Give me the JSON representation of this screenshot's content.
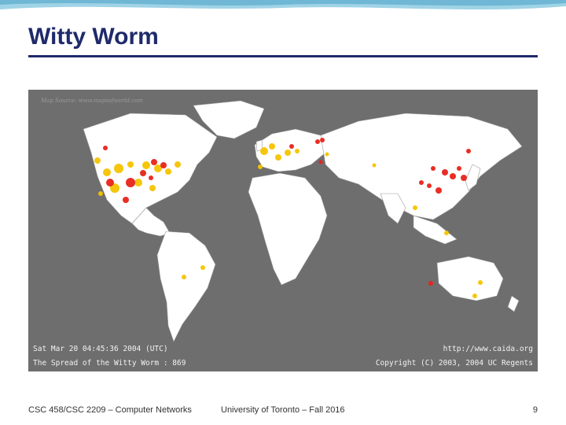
{
  "slide": {
    "title": "Witty Worm",
    "footer_left": "CSC 458/CSC 2209 – Computer Networks",
    "footer_center": "University of Toronto – Fall 2016",
    "page_number": "9"
  },
  "map": {
    "source_credit": "Map Source: www.mapsofworld.com",
    "timestamp": "Sat Mar 20 04:45:36 2004 (UTC)",
    "caption": "The Spread of the Witty Worm : 869",
    "url": "http://www.caida.org",
    "copyright": "Copyright (C) 2003, 2004 UC Regents",
    "colors": {
      "ocean": "#6e6e6e",
      "land": "#ffffff",
      "infected_high": "#e8231a",
      "infected_low": "#f5c400"
    }
  }
}
